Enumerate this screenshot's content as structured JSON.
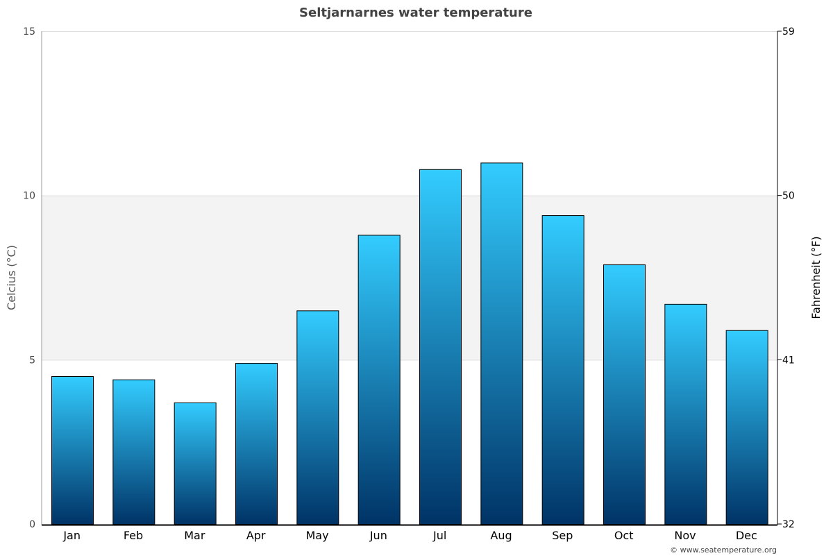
{
  "chart_data": {
    "type": "bar",
    "title": "Seltjarnarnes water temperature",
    "ylabel": "Celcius (°C)",
    "ylabel_right": "Fahrenheit (°F)",
    "ylim": [
      0,
      15
    ],
    "yticks": [
      0,
      5,
      10,
      15
    ],
    "yticks_right": [
      32,
      41,
      50,
      59
    ],
    "categories": [
      "Jan",
      "Feb",
      "Mar",
      "Apr",
      "May",
      "Jun",
      "Jul",
      "Aug",
      "Sep",
      "Oct",
      "Nov",
      "Dec"
    ],
    "values": [
      4.5,
      4.4,
      3.7,
      4.9,
      6.5,
      8.8,
      10.8,
      11.0,
      9.4,
      7.9,
      6.7,
      5.9
    ],
    "shaded_band": [
      5,
      10
    ],
    "grid": true,
    "colors": {
      "bar_top": "#33ccff",
      "bar_bottom": "#003366",
      "band": "#f3f3f3",
      "title": "#444444"
    }
  },
  "credit": "© www.seatemperature.org"
}
